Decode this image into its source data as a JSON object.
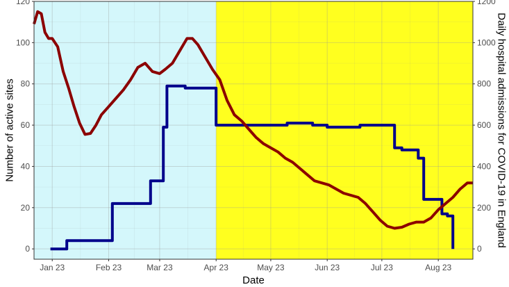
{
  "chart_data": {
    "type": "line",
    "xlabel": "Date",
    "ylabel_left": "Number of active sites",
    "ylabel_right": "Daily hospital admissions for COVID-19 in England",
    "x_range": [
      "2022-12-22",
      "2023-08-20"
    ],
    "x_ticks": [
      {
        "date": "2023-01-01",
        "label": "Jan 23"
      },
      {
        "date": "2023-02-01",
        "label": "Feb 23"
      },
      {
        "date": "2023-03-01",
        "label": "Mar 23"
      },
      {
        "date": "2023-04-01",
        "label": "Apr 23"
      },
      {
        "date": "2023-05-01",
        "label": "May 23"
      },
      {
        "date": "2023-06-01",
        "label": "Jun 23"
      },
      {
        "date": "2023-07-01",
        "label": "Jul 23"
      },
      {
        "date": "2023-08-01",
        "label": "Aug 23"
      }
    ],
    "y_left_range": [
      -5,
      120
    ],
    "y_left_ticks": [
      0,
      20,
      40,
      60,
      80,
      100,
      120
    ],
    "y_right_range": [
      -50,
      1200
    ],
    "y_right_ticks": [
      0,
      200,
      400,
      600,
      800,
      1000,
      1200
    ],
    "grid": true,
    "shaded_regions": [
      {
        "start": "2022-12-22",
        "end": "2023-04-01",
        "color": "#d4f7fb"
      },
      {
        "start": "2023-04-01",
        "end": "2023-08-20",
        "color": "#ffff1f"
      }
    ],
    "series": [
      {
        "axis": "left",
        "color": "#00008b",
        "step": true,
        "points": [
          [
            "2022-12-31",
            0
          ],
          [
            "2023-01-09",
            4
          ],
          [
            "2023-02-03",
            22
          ],
          [
            "2023-02-24",
            33
          ],
          [
            "2023-03-03",
            59
          ],
          [
            "2023-03-05",
            79
          ],
          [
            "2023-03-15",
            78
          ],
          [
            "2023-04-01",
            60
          ],
          [
            "2023-05-10",
            61
          ],
          [
            "2023-05-24",
            60
          ],
          [
            "2023-06-01",
            59
          ],
          [
            "2023-06-19",
            60
          ],
          [
            "2023-07-08",
            49
          ],
          [
            "2023-07-12",
            48
          ],
          [
            "2023-07-21",
            44
          ],
          [
            "2023-07-24",
            24
          ],
          [
            "2023-08-03",
            17
          ],
          [
            "2023-08-06",
            16
          ],
          [
            "2023-08-09",
            0
          ]
        ]
      },
      {
        "axis": "right",
        "color": "#8b0000",
        "step": false,
        "points": [
          [
            "2022-12-22",
            1090
          ],
          [
            "2022-12-24",
            1150
          ],
          [
            "2022-12-26",
            1140
          ],
          [
            "2022-12-28",
            1050
          ],
          [
            "2022-12-30",
            1020
          ],
          [
            "2023-01-01",
            1020
          ],
          [
            "2023-01-04",
            980
          ],
          [
            "2023-01-07",
            860
          ],
          [
            "2023-01-10",
            780
          ],
          [
            "2023-01-13",
            690
          ],
          [
            "2023-01-16",
            610
          ],
          [
            "2023-01-19",
            555
          ],
          [
            "2023-01-22",
            560
          ],
          [
            "2023-01-25",
            600
          ],
          [
            "2023-01-28",
            650
          ],
          [
            "2023-02-01",
            690
          ],
          [
            "2023-02-05",
            730
          ],
          [
            "2023-02-09",
            770
          ],
          [
            "2023-02-13",
            820
          ],
          [
            "2023-02-17",
            880
          ],
          [
            "2023-02-21",
            900
          ],
          [
            "2023-02-25",
            860
          ],
          [
            "2023-03-01",
            850
          ],
          [
            "2023-03-04",
            870
          ],
          [
            "2023-03-08",
            900
          ],
          [
            "2023-03-12",
            960
          ],
          [
            "2023-03-16",
            1020
          ],
          [
            "2023-03-19",
            1020
          ],
          [
            "2023-03-22",
            990
          ],
          [
            "2023-03-26",
            930
          ],
          [
            "2023-03-30",
            870
          ],
          [
            "2023-04-03",
            820
          ],
          [
            "2023-04-07",
            720
          ],
          [
            "2023-04-11",
            650
          ],
          [
            "2023-04-15",
            620
          ],
          [
            "2023-04-19",
            580
          ],
          [
            "2023-04-23",
            540
          ],
          [
            "2023-04-27",
            510
          ],
          [
            "2023-05-01",
            490
          ],
          [
            "2023-05-05",
            470
          ],
          [
            "2023-05-09",
            440
          ],
          [
            "2023-05-13",
            420
          ],
          [
            "2023-05-17",
            390
          ],
          [
            "2023-05-21",
            360
          ],
          [
            "2023-05-25",
            330
          ],
          [
            "2023-05-29",
            320
          ],
          [
            "2023-06-02",
            310
          ],
          [
            "2023-06-06",
            290
          ],
          [
            "2023-06-10",
            270
          ],
          [
            "2023-06-14",
            260
          ],
          [
            "2023-06-18",
            250
          ],
          [
            "2023-06-22",
            220
          ],
          [
            "2023-06-26",
            180
          ],
          [
            "2023-06-30",
            140
          ],
          [
            "2023-07-04",
            110
          ],
          [
            "2023-07-08",
            100
          ],
          [
            "2023-07-12",
            105
          ],
          [
            "2023-07-16",
            120
          ],
          [
            "2023-07-20",
            130
          ],
          [
            "2023-07-24",
            130
          ],
          [
            "2023-07-28",
            150
          ],
          [
            "2023-08-01",
            190
          ],
          [
            "2023-08-05",
            220
          ],
          [
            "2023-08-09",
            250
          ],
          [
            "2023-08-13",
            290
          ],
          [
            "2023-08-17",
            320
          ],
          [
            "2023-08-20",
            320
          ]
        ]
      }
    ]
  }
}
